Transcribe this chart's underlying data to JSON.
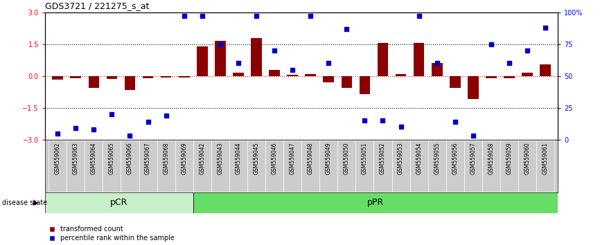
{
  "title": "GDS3721 / 221275_s_at",
  "samples": [
    "GSM559062",
    "GSM559063",
    "GSM559064",
    "GSM559065",
    "GSM559066",
    "GSM559067",
    "GSM559068",
    "GSM559069",
    "GSM559042",
    "GSM559043",
    "GSM559044",
    "GSM559045",
    "GSM559046",
    "GSM559047",
    "GSM559048",
    "GSM559049",
    "GSM559050",
    "GSM559051",
    "GSM559052",
    "GSM559053",
    "GSM559054",
    "GSM559055",
    "GSM559056",
    "GSM559057",
    "GSM559058",
    "GSM559059",
    "GSM559060",
    "GSM559061"
  ],
  "bar_values": [
    -0.18,
    -0.12,
    -0.55,
    -0.15,
    -0.65,
    -0.1,
    -0.08,
    -0.07,
    1.4,
    1.65,
    0.15,
    1.8,
    0.3,
    0.05,
    0.08,
    -0.3,
    -0.55,
    -0.85,
    1.55,
    0.08,
    1.55,
    0.6,
    -0.55,
    -1.1,
    -0.1,
    -0.1,
    0.15,
    0.55
  ],
  "percentile_values": [
    5,
    9,
    8,
    20,
    3,
    14,
    19,
    97,
    97,
    75,
    60,
    97,
    70,
    55,
    97,
    60,
    87,
    15,
    15,
    10,
    97,
    60,
    14,
    3,
    75,
    60,
    70,
    88
  ],
  "pCR_count": 8,
  "pPR_count": 20,
  "bar_color": "#8B0000",
  "dot_color": "#0000CC",
  "ylim_left": [
    -3,
    3
  ],
  "ylim_right": [
    0,
    100
  ],
  "yticks_left": [
    -3,
    -1.5,
    0,
    1.5,
    3
  ],
  "yticks_right": [
    0,
    25,
    50,
    75,
    100
  ],
  "label_transformed": "transformed count",
  "label_percentile": "percentile rank within the sample",
  "group_labels": [
    "pCR",
    "pPR"
  ],
  "disease_state_label": "disease state",
  "pCR_color": "#c8f0c8",
  "pPR_color": "#66dd66",
  "label_bg_color": "#cccccc"
}
